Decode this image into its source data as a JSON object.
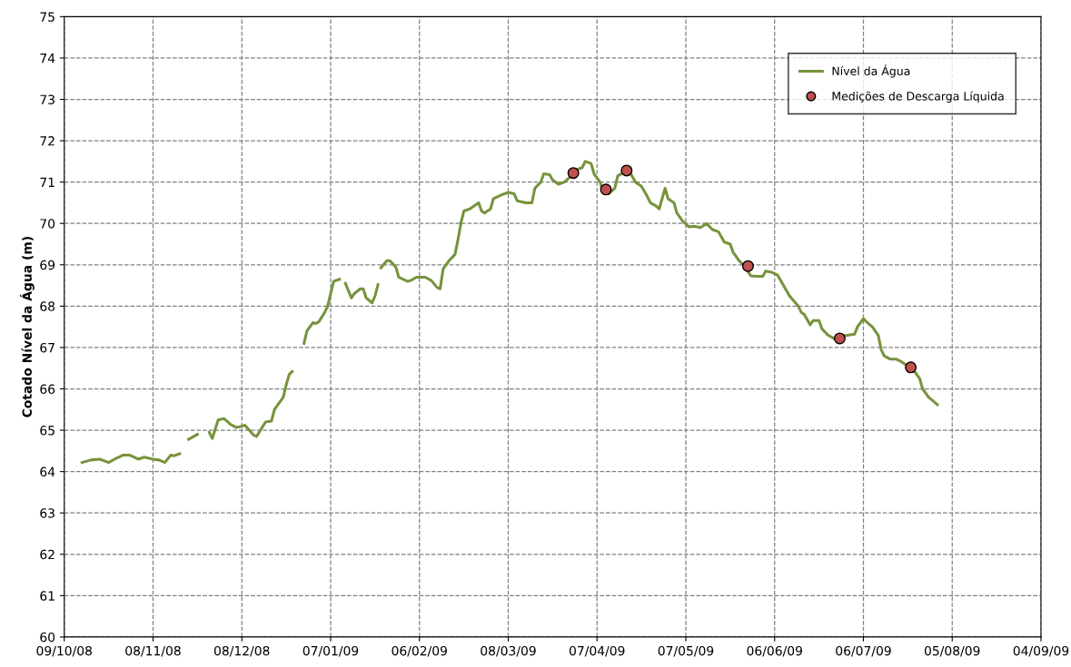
{
  "chart_data": {
    "type": "line",
    "ylabel": "Cotado Nível da Água (m)",
    "xlim": [
      "2008-10-09",
      "2009-09-04"
    ],
    "xticks": [
      {
        "value": "2008-10-09",
        "label": "09/10/08"
      },
      {
        "value": "2008-11-08",
        "label": "08/11/08"
      },
      {
        "value": "2008-12-08",
        "label": "08/12/08"
      },
      {
        "value": "2009-01-07",
        "label": "07/01/09"
      },
      {
        "value": "2009-02-06",
        "label": "06/02/09"
      },
      {
        "value": "2009-03-08",
        "label": "08/03/09"
      },
      {
        "value": "2009-04-07",
        "label": "07/04/09"
      },
      {
        "value": "2009-05-07",
        "label": "07/05/09"
      },
      {
        "value": "2009-06-06",
        "label": "06/06/09"
      },
      {
        "value": "2009-07-06",
        "label": "06/07/09"
      },
      {
        "value": "2009-08-05",
        "label": "05/08/09"
      },
      {
        "value": "2009-09-04",
        "label": "04/09/09"
      }
    ],
    "ylim": [
      60,
      75
    ],
    "yticks": [
      60,
      61,
      62,
      63,
      64,
      65,
      66,
      67,
      68,
      69,
      70,
      71,
      72,
      73,
      74,
      75
    ],
    "grid": true,
    "legend": "top right",
    "series": [
      {
        "name": "Nível da Água",
        "color": "#77933c",
        "marker": "none",
        "line_style": "solid",
        "x": [
          "2008-10-15",
          "2008-10-18",
          "2008-10-21",
          "2008-10-24",
          "2008-10-26",
          "2008-10-29",
          "2008-10-31",
          "2008-11-03",
          "2008-11-05",
          "2008-11-08",
          "2008-11-10",
          "2008-11-12",
          "2008-11-14",
          "2008-11-15",
          "2008-11-17",
          "2008-11-18T12:00",
          "2008-11-20",
          "2008-11-23",
          "2008-11-25",
          "2008-11-27",
          "2008-11-28",
          "2008-11-30",
          "2008-12-02",
          "2008-12-04",
          "2008-12-06",
          "2008-12-07",
          "2008-12-09",
          "2008-12-12",
          "2008-12-13",
          "2008-12-16",
          "2008-12-18",
          "2008-12-19",
          "2008-12-22",
          "2008-12-23",
          "2008-12-24",
          "2008-12-25",
          "2008-12-27",
          "2008-12-29",
          "2008-12-30",
          "2009-01-01",
          "2009-01-02",
          "2009-01-03",
          "2009-01-05",
          "2009-01-06",
          "2009-01-07",
          "2009-01-08",
          "2009-01-10",
          "2009-01-11",
          "2009-01-12",
          "2009-01-14",
          "2009-01-15",
          "2009-01-17",
          "2009-01-18",
          "2009-01-19",
          "2009-01-21",
          "2009-01-22",
          "2009-01-23",
          "2009-01-23T12:00",
          "2009-01-24",
          "2009-01-26",
          "2009-01-27",
          "2009-01-29",
          "2009-01-30",
          "2009-02-02",
          "2009-02-03",
          "2009-02-05",
          "2009-02-08",
          "2009-02-10",
          "2009-02-12",
          "2009-02-13",
          "2009-02-14",
          "2009-02-16",
          "2009-02-18",
          "2009-02-19",
          "2009-02-20",
          "2009-02-21",
          "2009-02-23",
          "2009-02-25",
          "2009-02-26",
          "2009-02-27",
          "2009-02-28",
          "2009-03-02",
          "2009-03-03",
          "2009-03-06",
          "2009-03-08",
          "2009-03-10",
          "2009-03-11",
          "2009-03-14",
          "2009-03-16",
          "2009-03-17",
          "2009-03-19",
          "2009-03-20",
          "2009-03-22",
          "2009-03-23",
          "2009-03-25",
          "2009-03-27",
          "2009-03-30",
          "2009-03-31",
          "2009-04-02",
          "2009-04-03",
          "2009-04-05",
          "2009-04-06",
          "2009-04-08",
          "2009-04-09",
          "2009-04-11",
          "2009-04-13",
          "2009-04-14",
          "2009-04-17",
          "2009-04-18",
          "2009-04-20",
          "2009-04-22",
          "2009-04-24",
          "2009-04-25",
          "2009-04-27",
          "2009-04-28",
          "2009-04-30",
          "2009-05-01",
          "2009-05-03",
          "2009-05-04",
          "2009-05-06",
          "2009-05-08",
          "2009-05-10",
          "2009-05-12",
          "2009-05-14",
          "2009-05-16",
          "2009-05-18",
          "2009-05-20",
          "2009-05-22",
          "2009-05-23",
          "2009-05-25",
          "2009-05-27",
          "2009-05-29",
          "2009-05-31",
          "2009-06-02",
          "2009-06-03",
          "2009-06-05",
          "2009-06-07",
          "2009-06-09",
          "2009-06-11",
          "2009-06-14",
          "2009-06-15",
          "2009-06-16",
          "2009-06-18",
          "2009-06-19",
          "2009-06-21",
          "2009-06-22",
          "2009-06-24",
          "2009-06-26",
          "2009-06-28",
          "2009-06-29",
          "2009-07-01",
          "2009-07-03",
          "2009-07-04",
          "2009-07-06",
          "2009-07-07",
          "2009-07-09",
          "2009-07-11",
          "2009-07-12",
          "2009-07-13",
          "2009-07-15",
          "2009-07-17",
          "2009-07-19",
          "2009-07-21",
          "2009-07-23",
          "2009-07-25",
          "2009-07-26",
          "2009-07-28",
          "2009-07-31"
        ],
        "values": [
          64.22,
          64.28,
          64.3,
          64.22,
          64.3,
          64.4,
          64.4,
          64.3,
          64.35,
          64.3,
          64.28,
          64.22,
          64.4,
          64.38,
          64.43,
          null,
          64.78,
          64.9,
          null,
          64.95,
          64.8,
          65.25,
          65.28,
          65.15,
          65.07,
          65.08,
          65.12,
          64.88,
          64.85,
          65.2,
          65.22,
          65.5,
          65.8,
          66.1,
          66.35,
          66.42,
          null,
          67.1,
          67.4,
          67.6,
          67.58,
          67.62,
          67.85,
          68.0,
          68.3,
          68.6,
          68.65,
          null,
          68.55,
          68.2,
          68.3,
          68.42,
          68.42,
          68.2,
          68.08,
          68.25,
          68.52,
          null,
          68.93,
          69.1,
          69.1,
          68.95,
          68.7,
          68.6,
          68.62,
          68.7,
          68.7,
          68.62,
          68.45,
          68.42,
          68.9,
          69.1,
          69.25,
          69.6,
          70.0,
          70.3,
          70.35,
          70.45,
          70.5,
          70.3,
          70.25,
          70.35,
          70.6,
          70.7,
          70.75,
          70.72,
          70.55,
          70.5,
          70.5,
          70.85,
          71.0,
          71.2,
          71.18,
          71.05,
          70.95,
          71.0,
          71.2,
          71.3,
          71.35,
          71.5,
          71.45,
          71.2,
          71.0,
          70.8,
          70.72,
          70.85,
          71.15,
          71.28,
          71.25,
          71.0,
          70.9,
          70.65,
          70.5,
          70.42,
          70.35,
          70.85,
          70.6,
          70.5,
          70.25,
          70.05,
          69.92,
          69.93,
          69.9,
          70.0,
          69.85,
          69.8,
          69.55,
          69.5,
          69.3,
          69.1,
          68.95,
          68.73,
          68.72,
          68.72,
          68.85,
          68.82,
          68.75,
          68.5,
          68.25,
          68.0,
          67.85,
          67.8,
          67.55,
          67.65,
          67.65,
          67.45,
          67.3,
          67.22,
          67.2,
          67.28,
          67.3,
          67.32,
          67.5,
          67.7,
          67.62,
          67.5,
          67.3,
          66.95,
          66.8,
          66.72,
          66.72,
          66.65,
          66.55,
          66.45,
          66.25,
          66.0,
          65.8,
          65.62
        ]
      },
      {
        "name": "Medições de Descarga Líquida",
        "type": "scatter",
        "color": "#c0504d",
        "marker": "circle",
        "x": [
          "2009-03-30",
          "2009-04-10",
          "2009-04-17",
          "2009-05-28",
          "2009-06-28",
          "2009-07-22"
        ],
        "values": [
          71.22,
          70.82,
          71.28,
          68.97,
          67.22,
          66.52
        ]
      }
    ]
  }
}
